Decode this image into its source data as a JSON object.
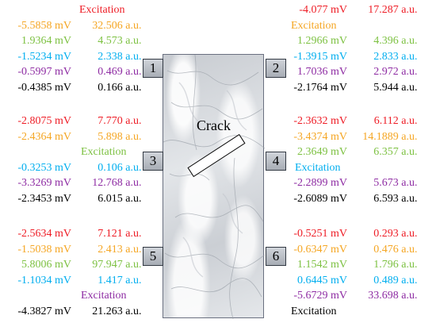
{
  "colors": {
    "red": "#ee1c25",
    "orange": "#f5a623",
    "green": "#7dc142",
    "cyan": "#00aeef",
    "purple": "#8e2ca3",
    "black": "#000000"
  },
  "crack_label": "Crack",
  "sensors": [
    "1",
    "2",
    "3",
    "4",
    "5",
    "6"
  ],
  "panels": {
    "p1": {
      "excitation": "Excitation",
      "rows": [
        {
          "mv": "-5.5858 mV",
          "au": "32.506 a.u."
        },
        {
          "mv": "1.9364 mV",
          "au": "4.573 a.u."
        },
        {
          "mv": "-1.5234 mV",
          "au": "2.338 a.u."
        },
        {
          "mv": "-0.5997 mV",
          "au": "0.469 a.u."
        },
        {
          "mv": "-0.4385 mV",
          "au": "0.166 a.u."
        }
      ]
    },
    "p2": {
      "excitation": "Excitation",
      "rows": [
        {
          "mv": "-4.077 mV",
          "au": "17.287 a.u."
        },
        {
          "mv": "1.2966 mV",
          "au": "4.396 a.u."
        },
        {
          "mv": "-1.3915 mV",
          "au": "2.833 a.u."
        },
        {
          "mv": "1.7036 mV",
          "au": "2.972 a.u."
        },
        {
          "mv": "-2.1764 mV",
          "au": "5.944 a.u."
        }
      ]
    },
    "p3": {
      "excitation": "Excitation",
      "rows": [
        {
          "mv": "-2.8075 mV",
          "au": "7.770 a.u."
        },
        {
          "mv": "-2.4364 mV",
          "au": "5.898 a.u."
        },
        {
          "mv": "-0.3253 mV",
          "au": "0.106 a.u."
        },
        {
          "mv": "-3.3269 mV",
          "au": "12.768 a.u."
        },
        {
          "mv": "-2.3453 mV",
          "au": "6.015 a.u."
        }
      ]
    },
    "p4": {
      "excitation": "Excitation",
      "rows": [
        {
          "mv": "-2.3632 mV",
          "au": "6.112 a.u."
        },
        {
          "mv": "-3.4374 mV",
          "au": "14.1889 a.u."
        },
        {
          "mv": "2.3649 mV",
          "au": "6.357 a.u."
        },
        {
          "mv": "-2.2899 mV",
          "au": "5.673 a.u."
        },
        {
          "mv": "-2.6089 mV",
          "au": "6.593 a.u."
        }
      ]
    },
    "p5": {
      "excitation": "Excitation",
      "rows": [
        {
          "mv": "-2.5634 mV",
          "au": "7.121 a.u."
        },
        {
          "mv": "-1.5038 mV",
          "au": "2.413 a.u."
        },
        {
          "mv": "5.8006 mV",
          "au": "97.947 a.u."
        },
        {
          "mv": "-1.1034 mV",
          "au": "1.417 a.u."
        },
        {
          "mv": "-4.3827 mV",
          "au": "21.263 a.u."
        }
      ]
    },
    "p6": {
      "excitation": "Excitation",
      "rows": [
        {
          "mv": "-0.5251 mV",
          "au": "0.293 a.u."
        },
        {
          "mv": "-0.6347 mV",
          "au": "0.476 a.u."
        },
        {
          "mv": "1.1542 mV",
          "au": "1.796 a.u."
        },
        {
          "mv": "0.6445 mV",
          "au": "0.489 a.u."
        },
        {
          "mv": "-5.6729 mV",
          "au": "33.698 a.u."
        }
      ]
    }
  }
}
